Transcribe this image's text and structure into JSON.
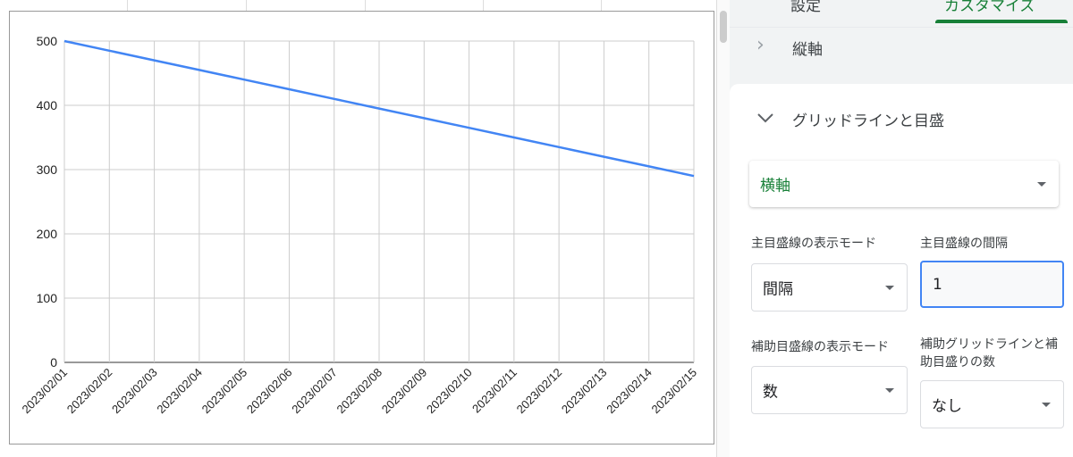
{
  "panel": {
    "tabs": [
      {
        "label": "設定"
      },
      {
        "label": "カスタマイズ",
        "active": true
      }
    ],
    "vertical_axis_section": "縦軸",
    "gridlines_section": "グリッドラインと目盛",
    "axis_select": "横軸",
    "major_mode_label": "主目盛線の表示モード",
    "major_mode_value": "間隔",
    "major_interval_label": "主目盛線の間隔",
    "major_interval_value": "1",
    "minor_mode_label": "補助目盛線の表示モード",
    "minor_mode_value": "数",
    "minor_count_label": "補助グリッドラインと補助目盛りの数",
    "minor_count_value": "なし",
    "accent_color": "#188038"
  },
  "chart_data": {
    "type": "line",
    "categories": [
      "2023/02/01",
      "2023/02/02",
      "2023/02/03",
      "2023/02/04",
      "2023/02/05",
      "2023/02/06",
      "2023/02/07",
      "2023/02/08",
      "2023/02/09",
      "2023/02/10",
      "2023/02/11",
      "2023/02/12",
      "2023/02/13",
      "2023/02/14",
      "2023/02/15"
    ],
    "values": [
      500,
      485,
      470,
      455,
      440,
      425,
      410,
      395,
      380,
      365,
      350,
      335,
      320,
      305,
      290
    ],
    "ylim": [
      0,
      500
    ],
    "yticks": [
      "0",
      "100",
      "200",
      "300",
      "400",
      "500"
    ],
    "grid": true,
    "line_color": "#4285f4"
  }
}
